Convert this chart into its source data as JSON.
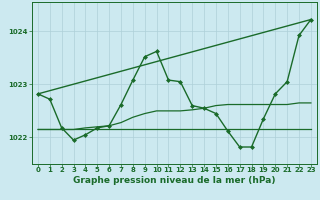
{
  "background_color": "#cce9f0",
  "grid_color": "#aed0d8",
  "line_color": "#1a6b2a",
  "title": "Graphe pression niveau de la mer (hPa)",
  "xlim": [
    -0.5,
    23.5
  ],
  "ylim": [
    1021.5,
    1024.55
  ],
  "yticks": [
    1022,
    1023,
    1024
  ],
  "xticks": [
    0,
    1,
    2,
    3,
    4,
    5,
    6,
    7,
    8,
    9,
    10,
    11,
    12,
    13,
    14,
    15,
    16,
    17,
    18,
    19,
    20,
    21,
    22,
    23
  ],
  "series": [
    {
      "x": [
        0,
        1,
        2,
        3,
        4,
        5,
        6,
        7,
        8,
        9,
        10,
        11,
        12,
        13,
        14,
        15,
        16,
        17,
        18,
        19,
        20,
        21,
        22,
        23
      ],
      "y": [
        1022.82,
        1022.72,
        1022.18,
        1021.95,
        1022.05,
        1022.18,
        1022.22,
        1022.62,
        1023.08,
        1023.52,
        1023.62,
        1023.08,
        1023.05,
        1022.6,
        1022.55,
        1022.45,
        1022.12,
        1021.82,
        1021.82,
        1022.35,
        1022.82,
        1023.05,
        1023.92,
        1024.22
      ],
      "marker": "D",
      "markersize": 2.0,
      "linewidth": 1.0
    },
    {
      "x": [
        0,
        1,
        2,
        3,
        4,
        5,
        6,
        7,
        8,
        9,
        10,
        11,
        12,
        13,
        14,
        15,
        16,
        17,
        18,
        19,
        20,
        21,
        22,
        23
      ],
      "y": [
        1022.15,
        1022.15,
        1022.15,
        1022.15,
        1022.15,
        1022.15,
        1022.15,
        1022.15,
        1022.15,
        1022.15,
        1022.15,
        1022.15,
        1022.15,
        1022.15,
        1022.15,
        1022.15,
        1022.15,
        1022.15,
        1022.15,
        1022.15,
        1022.15,
        1022.15,
        1022.15,
        1022.15
      ],
      "marker": null,
      "markersize": 0,
      "linewidth": 0.9
    },
    {
      "x": [
        0,
        2,
        3,
        4,
        5,
        6,
        7,
        8,
        9,
        10,
        11,
        12,
        13,
        14,
        15,
        16,
        17,
        18,
        19,
        20,
        21,
        22,
        23
      ],
      "y": [
        1022.15,
        1022.15,
        1022.15,
        1022.18,
        1022.2,
        1022.22,
        1022.28,
        1022.38,
        1022.45,
        1022.5,
        1022.5,
        1022.5,
        1022.52,
        1022.55,
        1022.6,
        1022.62,
        1022.62,
        1022.62,
        1022.62,
        1022.62,
        1022.62,
        1022.65,
        1022.65
      ],
      "marker": null,
      "markersize": 0,
      "linewidth": 0.9
    },
    {
      "x": [
        0,
        23
      ],
      "y": [
        1022.82,
        1024.22
      ],
      "marker": null,
      "markersize": 0,
      "linewidth": 1.0
    }
  ],
  "title_fontsize": 6.5,
  "tick_fontsize": 5.0
}
